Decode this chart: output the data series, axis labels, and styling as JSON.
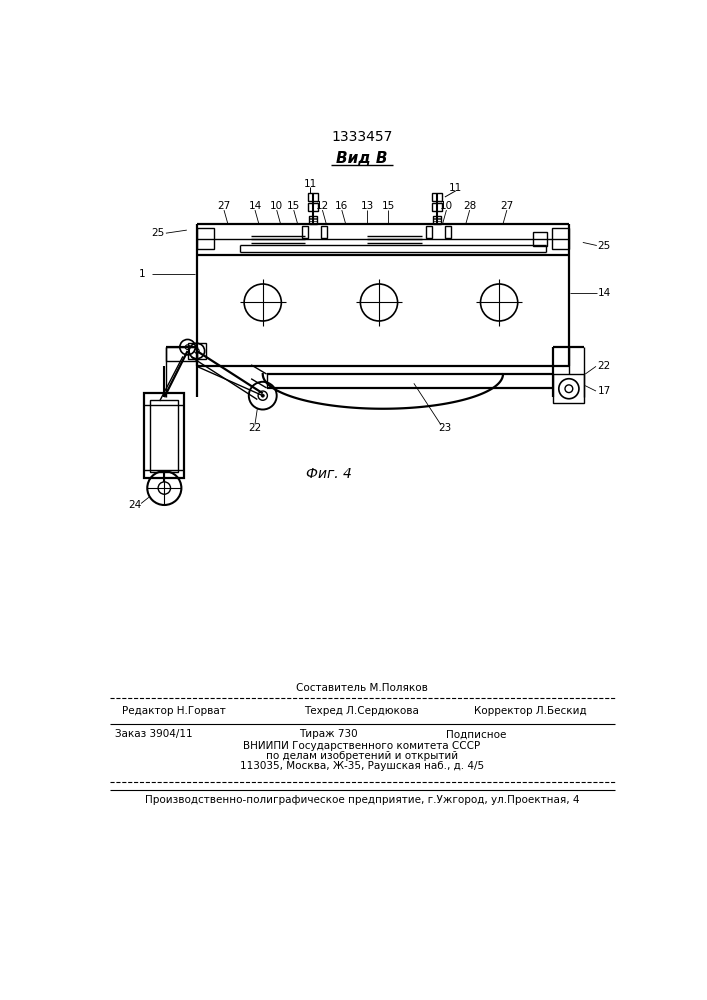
{
  "patent_number": "1333457",
  "view_label": "Вид В",
  "fig_label": "Фиг. 4",
  "bg_color": "#ffffff",
  "footer": {
    "line0_center": "Составитель М.Поляков",
    "line1_left": "Редактор Н.Горват",
    "line1_center": "Техред Л.Сердюкова",
    "line1_right": "Корректор Л.Бескид",
    "line2_left": "Заказ 3904/11",
    "line2_center": "Тираж 730",
    "line2_right": "Подписное",
    "line3": "ВНИИПИ Государственного комитета СССР",
    "line4": "по делам изобретений и открытий",
    "line5": "113035, Москва, Ж-35, Раушская наб., д. 4/5",
    "line6": "Производственно-полиграфическое предприятие, г.Ужгород, ул.Проектная, 4"
  }
}
